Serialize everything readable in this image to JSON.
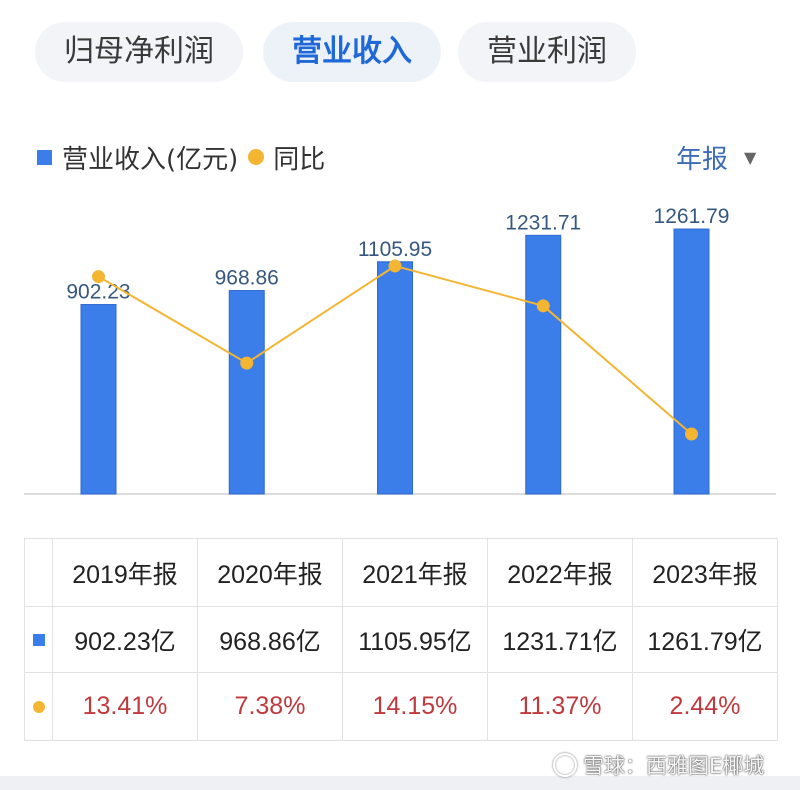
{
  "tabs": [
    {
      "label": "归母净利润",
      "active": false
    },
    {
      "label": "营业收入",
      "active": true
    },
    {
      "label": "营业利润",
      "active": false
    }
  ],
  "legend_icons": {
    "revenue": "blue-square-icon",
    "yoy": "orange-dot-icon"
  },
  "period_select": {
    "value": "年报",
    "icon": "triangle-down-icon"
  },
  "chart_data": {
    "type": "bar",
    "categories": [
      "2019年报",
      "2020年报",
      "2021年报",
      "2022年报",
      "2023年报"
    ],
    "series": [
      {
        "name": "营业收入(亿元)",
        "type": "bar",
        "values": [
          902.23,
          968.86,
          1105.95,
          1231.71,
          1261.79
        ]
      },
      {
        "name": "同比",
        "type": "line",
        "values": [
          13.41,
          7.38,
          14.15,
          11.37,
          2.44
        ]
      }
    ],
    "legend_position": "top-left",
    "grid": false
  },
  "table": {
    "revenue_row": [
      "902.23亿",
      "968.86亿",
      "1105.95亿",
      "1231.71亿",
      "1261.79亿"
    ],
    "yoy_row": [
      "13.41%",
      "7.38%",
      "14.15%",
      "11.37%",
      "2.44%"
    ]
  },
  "colors": {
    "bar": "#3b7de9",
    "bar_edge": "#2e6ad0",
    "line": "#f3b532",
    "yoy_text": "#c0393e",
    "active_tab_text": "#1f68d8",
    "dropdown_text": "#3d6db6"
  },
  "watermark": {
    "text": "雪球：西雅图E椰城",
    "icon": "snowball-logo-icon"
  }
}
